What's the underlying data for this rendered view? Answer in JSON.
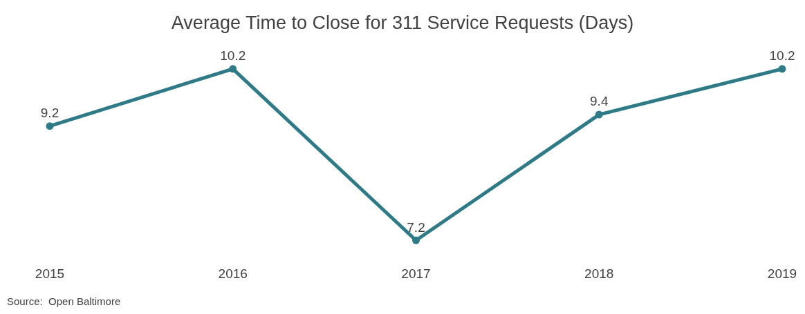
{
  "chart_data": {
    "type": "line",
    "title": "Average Time to Close for 311 Service Requests (Days)",
    "categories": [
      "2015",
      "2016",
      "2017",
      "2018",
      "2019"
    ],
    "series": [
      {
        "color": "#2e7b87",
        "values": [
          9.2,
          10.2,
          7.2,
          9.4,
          10.2
        ]
      }
    ],
    "data_labels": true,
    "marker": "circle",
    "line_style": "solid",
    "annotations": [
      "Source:  Open Baltimore"
    ]
  }
}
